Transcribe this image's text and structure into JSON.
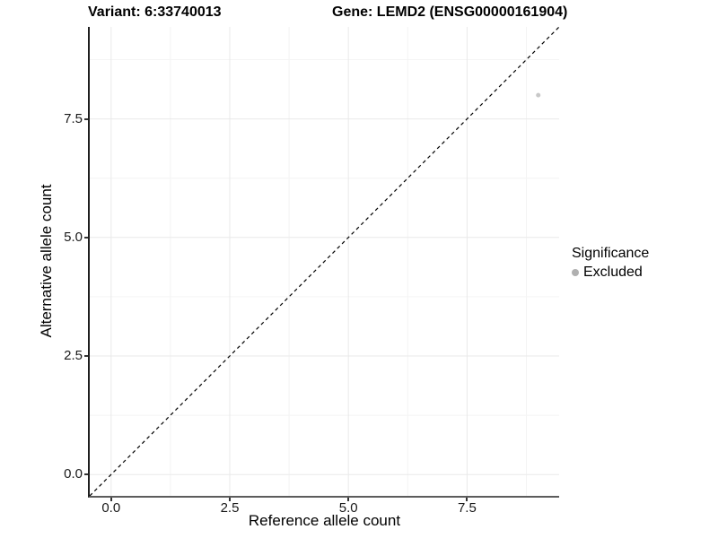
{
  "header": {
    "variant_title": "Variant: 6:33740013",
    "gene_title": "Gene: LEMD2 (ENSG00000161904)"
  },
  "chart_data": {
    "type": "scatter",
    "title_left": "Variant: 6:33740013",
    "title_right": "Gene: LEMD2 (ENSG00000161904)",
    "xlabel": "Reference allele count",
    "ylabel": "Alternative allele count",
    "xlim": [
      -0.45,
      9.44
    ],
    "ylim": [
      -0.45,
      9.44
    ],
    "xticks": {
      "values": [
        0,
        2.5,
        5,
        7.5
      ],
      "labels": [
        "0.0",
        "2.5",
        "5.0",
        "7.5"
      ]
    },
    "yticks": {
      "values": [
        0,
        2.5,
        5,
        7.5
      ],
      "labels": [
        "0.0",
        "2.5",
        "5.0",
        "7.5"
      ]
    },
    "minor_tick_values": [
      1.25,
      3.75,
      6.25,
      8.75
    ],
    "grid": "major+minor",
    "points": [
      {
        "x": 9,
        "y": 8,
        "series": "Excluded",
        "color": "#c8c8c8",
        "radius": 2.5
      }
    ],
    "reference_line": {
      "kind": "identity y=x",
      "style": "dashed",
      "color": "#000000"
    },
    "legend": {
      "title": "Significance",
      "position": "right",
      "items": [
        {
          "label": "Excluded",
          "color": "#b0b0b0"
        }
      ]
    }
  },
  "colors": {
    "background": "#ffffff",
    "grid_major": "#e9e9e9",
    "grid_minor": "#f4f4f4",
    "axis_line_left": "#1f1f1f",
    "axis_line_bottom": "#5c5c5c",
    "tick_mark": "#333333",
    "text": "#000000"
  }
}
